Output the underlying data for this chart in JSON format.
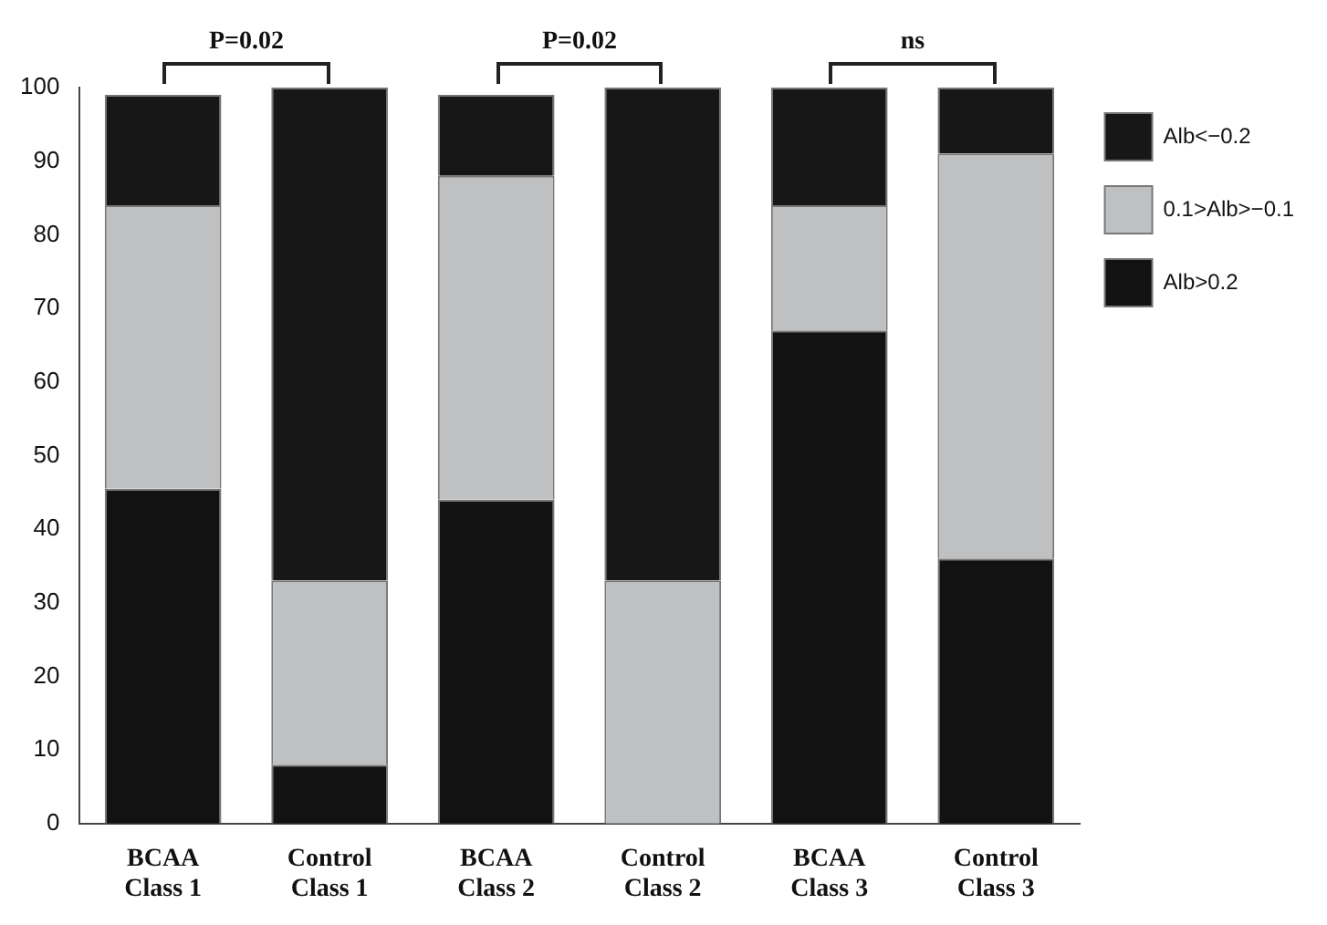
{
  "chart_data": {
    "type": "bar",
    "stacked": true,
    "categories": [
      "BCAA Class 1",
      "Control Class 1",
      "BCAA Class 2",
      "Control Class 2",
      "BCAA Class 3",
      "Control Class 3"
    ],
    "series": [
      {
        "name": "Alb>0.2",
        "color": "#121212",
        "values": [
          45.5,
          8,
          44,
          0,
          67,
          36
        ]
      },
      {
        "name": "0.1>Alb>−0.1",
        "color": "#bfc0c2",
        "values": [
          38.5,
          25,
          44,
          33,
          17,
          55
        ]
      },
      {
        "name": "Alb<−0.2",
        "color": "#171717",
        "values": [
          15,
          67,
          11,
          67,
          16,
          9
        ]
      }
    ],
    "ylim": [
      0,
      100
    ],
    "yticks": [
      0,
      10,
      20,
      30,
      40,
      50,
      60,
      70,
      80,
      90,
      100
    ],
    "grid": false,
    "legend": "top right",
    "annotations": [
      "P=0.02",
      "P=0.02",
      "ns"
    ]
  }
}
